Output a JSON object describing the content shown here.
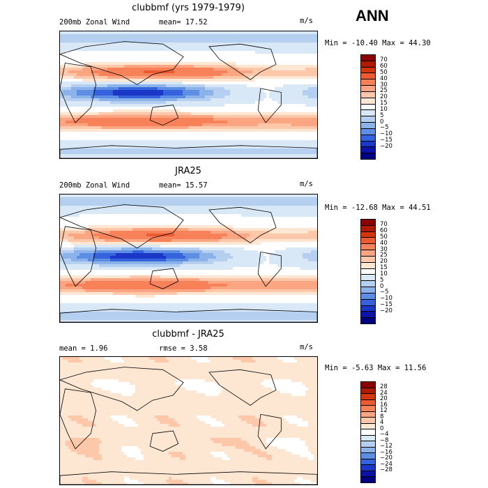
{
  "season": "ANN",
  "panels": [
    {
      "title": "clubbmf (yrs 1979-1979)",
      "left_label": "200mb Zonal Wind",
      "mean_text": "mean=  17.52",
      "units": "m/s",
      "minmax": "Min = -10.40 Max =  44.30",
      "levels": [
        "70",
        "60",
        "50",
        "40",
        "30",
        "25",
        "20",
        "15",
        "10",
        "5",
        "0",
        "−5",
        "−10",
        "−15",
        "−20"
      ],
      "colors": [
        "#8b0000",
        "#b01a00",
        "#d3360c",
        "#ee5a32",
        "#f7825a",
        "#fba582",
        "#fdc7aa",
        "#fde6d2",
        "#ffffff",
        "#d9e8f7",
        "#b4cff0",
        "#8bb3ea",
        "#5d8ee3",
        "#3563de",
        "#1a37c8",
        "#0a15a8",
        "#000080"
      ],
      "field": "mean"
    },
    {
      "title": "JRA25",
      "left_label": "200mb Zonal Wind",
      "mean_text": "mean=  15.57",
      "units": "m/s",
      "minmax": "Min = -12.68 Max =  44.51",
      "levels": [
        "70",
        "60",
        "50",
        "40",
        "30",
        "25",
        "20",
        "15",
        "10",
        "5",
        "0",
        "−5",
        "−10",
        "−15",
        "−20"
      ],
      "colors": [
        "#8b0000",
        "#b01a00",
        "#d3360c",
        "#ee5a32",
        "#f7825a",
        "#fba582",
        "#fdc7aa",
        "#fde6d2",
        "#ffffff",
        "#d9e8f7",
        "#b4cff0",
        "#8bb3ea",
        "#5d8ee3",
        "#3563de",
        "#1a37c8",
        "#0a15a8",
        "#000080"
      ],
      "field": "mean"
    },
    {
      "title": "clubbmf - JRA25",
      "left_label": "mean =   1.96",
      "mean_text": "rmse =   3.58",
      "units": "m/s",
      "minmax": "Min = -5.63 Max = 11.56",
      "levels": [
        "28",
        "24",
        "20",
        "16",
        "12",
        "8",
        "4",
        "0",
        "−4",
        "−8",
        "−12",
        "−16",
        "−20",
        "−24",
        "−28"
      ],
      "colors": [
        "#8b0000",
        "#b01a00",
        "#d3360c",
        "#ee5a32",
        "#f7825a",
        "#fba582",
        "#fdc7aa",
        "#fde6d2",
        "#ffffff",
        "#d9e8f7",
        "#b4cff0",
        "#8bb3ea",
        "#5d8ee3",
        "#3563de",
        "#1a37c8",
        "#0a15a8",
        "#000080"
      ],
      "field": "diff"
    }
  ]
}
